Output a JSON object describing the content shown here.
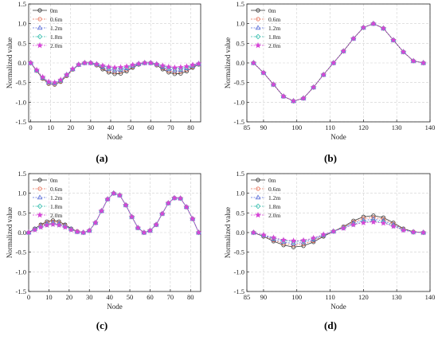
{
  "chart_data": [
    {
      "id": "a",
      "type": "line",
      "caption": "(a)",
      "xlabel": "Node",
      "ylabel": "Normalized value",
      "xlim": [
        -1,
        85
      ],
      "ylim": [
        -1.5,
        1.5
      ],
      "xticks": [
        "0",
        "10",
        "20",
        "30",
        "40",
        "50",
        "60",
        "70",
        "80"
      ],
      "yticks": [
        "-1.5",
        "-1.0",
        "-0.5",
        "0.0",
        "0.5",
        "1.0",
        "1.5"
      ],
      "grid": true,
      "legend": "top-left",
      "x": [
        0,
        3,
        6,
        9,
        12,
        15,
        18,
        21,
        24,
        27,
        30,
        33,
        36,
        39,
        42,
        45,
        48,
        51,
        54,
        57,
        60,
        63,
        66,
        69,
        72,
        75,
        78,
        81,
        84
      ],
      "series": [
        {
          "name": "0m",
          "values": [
            0,
            -0.2,
            -0.4,
            -0.53,
            -0.55,
            -0.48,
            -0.33,
            -0.17,
            -0.05,
            0,
            0,
            -0.06,
            -0.16,
            -0.24,
            -0.28,
            -0.27,
            -0.21,
            -0.12,
            -0.04,
            0,
            0,
            -0.06,
            -0.16,
            -0.24,
            -0.28,
            -0.27,
            -0.21,
            -0.12,
            -0.04
          ]
        },
        {
          "name": "0.6m",
          "values": [
            0,
            -0.2,
            -0.39,
            -0.52,
            -0.54,
            -0.47,
            -0.32,
            -0.17,
            -0.05,
            0,
            0,
            -0.05,
            -0.13,
            -0.2,
            -0.23,
            -0.22,
            -0.17,
            -0.1,
            -0.03,
            0,
            0,
            -0.05,
            -0.13,
            -0.2,
            -0.23,
            -0.22,
            -0.17,
            -0.1,
            -0.03
          ]
        },
        {
          "name": "1.2m",
          "values": [
            0,
            -0.19,
            -0.38,
            -0.5,
            -0.52,
            -0.45,
            -0.31,
            -0.16,
            -0.05,
            0,
            0,
            -0.04,
            -0.11,
            -0.16,
            -0.19,
            -0.18,
            -0.14,
            -0.08,
            -0.03,
            0,
            0,
            -0.04,
            -0.11,
            -0.16,
            -0.19,
            -0.18,
            -0.14,
            -0.08,
            -0.03
          ]
        },
        {
          "name": "1.8m",
          "values": [
            0,
            -0.19,
            -0.37,
            -0.49,
            -0.51,
            -0.44,
            -0.3,
            -0.16,
            -0.04,
            0,
            0,
            -0.03,
            -0.08,
            -0.12,
            -0.14,
            -0.14,
            -0.11,
            -0.06,
            -0.02,
            0,
            0,
            -0.03,
            -0.08,
            -0.12,
            -0.14,
            -0.14,
            -0.11,
            -0.06,
            -0.02
          ]
        },
        {
          "name": "2.0m",
          "values": [
            0,
            -0.18,
            -0.36,
            -0.48,
            -0.5,
            -0.43,
            -0.3,
            -0.15,
            -0.04,
            0,
            0,
            -0.03,
            -0.07,
            -0.1,
            -0.12,
            -0.11,
            -0.09,
            -0.05,
            -0.02,
            0,
            0,
            -0.03,
            -0.07,
            -0.1,
            -0.12,
            -0.11,
            -0.09,
            -0.05,
            -0.02
          ]
        }
      ]
    },
    {
      "id": "b",
      "type": "line",
      "caption": "(b)",
      "xlabel": "Node",
      "ylabel": "Normalized value",
      "xlim": [
        85,
        140
      ],
      "ylim": [
        -1.5,
        1.5
      ],
      "xticks": [
        "85",
        "90",
        "100",
        "110",
        "120",
        "130",
        "140"
      ],
      "yticks": [
        "-1.5",
        "-1.0",
        "-0.5",
        "0.0",
        "0.5",
        "1.0",
        "1.5"
      ],
      "grid": true,
      "legend": "top-left",
      "x": [
        87,
        90,
        93,
        96,
        99,
        102,
        105,
        108,
        111,
        114,
        117,
        120,
        123,
        126,
        129,
        132,
        135,
        138
      ],
      "series": [
        {
          "name": "0m",
          "values": [
            0,
            -0.25,
            -0.55,
            -0.85,
            -0.97,
            -0.9,
            -0.62,
            -0.3,
            0,
            0.3,
            0.62,
            0.9,
            1.0,
            0.88,
            0.58,
            0.28,
            0.05,
            0
          ]
        },
        {
          "name": "0.6m",
          "values": [
            0,
            -0.25,
            -0.55,
            -0.85,
            -0.97,
            -0.9,
            -0.62,
            -0.3,
            0,
            0.3,
            0.62,
            0.9,
            1.0,
            0.88,
            0.58,
            0.28,
            0.05,
            0
          ]
        },
        {
          "name": "1.2m",
          "values": [
            0,
            -0.25,
            -0.55,
            -0.85,
            -0.97,
            -0.9,
            -0.62,
            -0.3,
            0,
            0.3,
            0.62,
            0.9,
            1.0,
            0.88,
            0.58,
            0.28,
            0.05,
            0
          ]
        },
        {
          "name": "1.8m",
          "values": [
            0,
            -0.25,
            -0.55,
            -0.85,
            -0.97,
            -0.9,
            -0.62,
            -0.3,
            0,
            0.3,
            0.62,
            0.9,
            1.0,
            0.88,
            0.58,
            0.28,
            0.05,
            0
          ]
        },
        {
          "name": "2.0m",
          "values": [
            0,
            -0.25,
            -0.55,
            -0.85,
            -0.97,
            -0.9,
            -0.62,
            -0.3,
            0,
            0.3,
            0.62,
            0.9,
            1.0,
            0.88,
            0.58,
            0.28,
            0.05,
            0
          ]
        }
      ]
    },
    {
      "id": "c",
      "type": "line",
      "caption": "(c)",
      "xlabel": "Node",
      "ylabel": "Normalized value",
      "xlim": [
        0,
        85
      ],
      "ylim": [
        -1.5,
        1.5
      ],
      "xticks": [
        "0",
        "10",
        "20",
        "30",
        "40",
        "50",
        "60",
        "70",
        "80"
      ],
      "yticks": [
        "-1.5",
        "-1.0",
        "-0.5",
        "0.0",
        "0.5",
        "1.0",
        "1.5"
      ],
      "grid": true,
      "legend": "top-left",
      "x": [
        0,
        3,
        6,
        9,
        12,
        15,
        18,
        21,
        24,
        27,
        30,
        33,
        36,
        39,
        42,
        45,
        48,
        51,
        54,
        57,
        60,
        63,
        66,
        69,
        72,
        75,
        78,
        81,
        84
      ],
      "series": [
        {
          "name": "0m",
          "values": [
            0,
            0.1,
            0.2,
            0.28,
            0.31,
            0.28,
            0.2,
            0.1,
            0.03,
            0,
            0.05,
            0.25,
            0.55,
            0.85,
            1.0,
            0.95,
            0.7,
            0.4,
            0.12,
            0,
            0.05,
            0.2,
            0.48,
            0.75,
            0.88,
            0.87,
            0.65,
            0.35,
            0
          ]
        },
        {
          "name": "0.6m",
          "values": [
            0,
            0.09,
            0.18,
            0.25,
            0.28,
            0.25,
            0.18,
            0.09,
            0.03,
            0,
            0.05,
            0.25,
            0.55,
            0.85,
            1.0,
            0.95,
            0.7,
            0.4,
            0.12,
            0,
            0.05,
            0.2,
            0.48,
            0.75,
            0.88,
            0.87,
            0.65,
            0.35,
            0
          ]
        },
        {
          "name": "1.2m",
          "values": [
            0,
            0.09,
            0.17,
            0.23,
            0.25,
            0.23,
            0.17,
            0.09,
            0.02,
            0,
            0.05,
            0.25,
            0.55,
            0.85,
            1.0,
            0.95,
            0.7,
            0.4,
            0.12,
            0,
            0.05,
            0.2,
            0.48,
            0.75,
            0.88,
            0.87,
            0.65,
            0.35,
            0
          ]
        },
        {
          "name": "1.8m",
          "values": [
            0,
            0.08,
            0.15,
            0.2,
            0.22,
            0.2,
            0.15,
            0.08,
            0.02,
            0,
            0.05,
            0.25,
            0.55,
            0.85,
            1.0,
            0.95,
            0.7,
            0.4,
            0.12,
            0,
            0.05,
            0.2,
            0.48,
            0.75,
            0.88,
            0.87,
            0.65,
            0.35,
            0
          ]
        },
        {
          "name": "2.0m",
          "values": [
            0,
            0.07,
            0.14,
            0.19,
            0.21,
            0.19,
            0.14,
            0.07,
            0.02,
            0,
            0.05,
            0.25,
            0.55,
            0.85,
            1.0,
            0.95,
            0.7,
            0.4,
            0.12,
            0,
            0.05,
            0.2,
            0.48,
            0.75,
            0.88,
            0.87,
            0.65,
            0.35,
            0
          ]
        }
      ]
    },
    {
      "id": "d",
      "type": "line",
      "caption": "(d)",
      "xlabel": "Node",
      "ylabel": "Normalized value",
      "xlim": [
        85,
        140
      ],
      "ylim": [
        -1.5,
        1.5
      ],
      "xticks": [
        "85",
        "90",
        "100",
        "110",
        "120",
        "130",
        "140"
      ],
      "yticks": [
        "-1.5",
        "-1.0",
        "-0.5",
        "0.0",
        "0.5",
        "1.0",
        "1.5"
      ],
      "grid": true,
      "legend": "top-left",
      "x": [
        87,
        90,
        93,
        96,
        99,
        102,
        105,
        108,
        111,
        114,
        117,
        120,
        123,
        126,
        129,
        132,
        135,
        138
      ],
      "series": [
        {
          "name": "0m",
          "values": [
            0,
            -0.1,
            -0.22,
            -0.32,
            -0.37,
            -0.34,
            -0.24,
            -0.1,
            0.03,
            0.15,
            0.3,
            0.4,
            0.43,
            0.38,
            0.25,
            0.1,
            0.02,
            0
          ]
        },
        {
          "name": "0.6m",
          "values": [
            0,
            -0.09,
            -0.19,
            -0.28,
            -0.32,
            -0.29,
            -0.21,
            -0.08,
            0.03,
            0.14,
            0.27,
            0.36,
            0.38,
            0.34,
            0.22,
            0.09,
            0.02,
            0
          ]
        },
        {
          "name": "1.2m",
          "values": [
            0,
            -0.08,
            -0.17,
            -0.24,
            -0.28,
            -0.25,
            -0.18,
            -0.07,
            0.03,
            0.13,
            0.24,
            0.31,
            0.34,
            0.3,
            0.2,
            0.08,
            0.02,
            0
          ]
        },
        {
          "name": "1.8m",
          "values": [
            0,
            -0.07,
            -0.14,
            -0.2,
            -0.23,
            -0.21,
            -0.15,
            -0.06,
            0.03,
            0.12,
            0.21,
            0.27,
            0.29,
            0.26,
            0.17,
            0.07,
            0.01,
            0
          ]
        },
        {
          "name": "2.0m",
          "values": [
            0,
            -0.06,
            -0.13,
            -0.19,
            -0.21,
            -0.2,
            -0.14,
            -0.05,
            0.03,
            0.11,
            0.2,
            0.25,
            0.27,
            0.24,
            0.16,
            0.06,
            0.01,
            0
          ]
        }
      ]
    }
  ],
  "style": {
    "series_colors": [
      "#333333",
      "#e8735a",
      "#5b6fd8",
      "#3cc0b0",
      "#d646d6"
    ],
    "series_markers": [
      "circle",
      "circle",
      "triangle",
      "diamond",
      "star"
    ],
    "grid_color": "#cfcfcf"
  }
}
